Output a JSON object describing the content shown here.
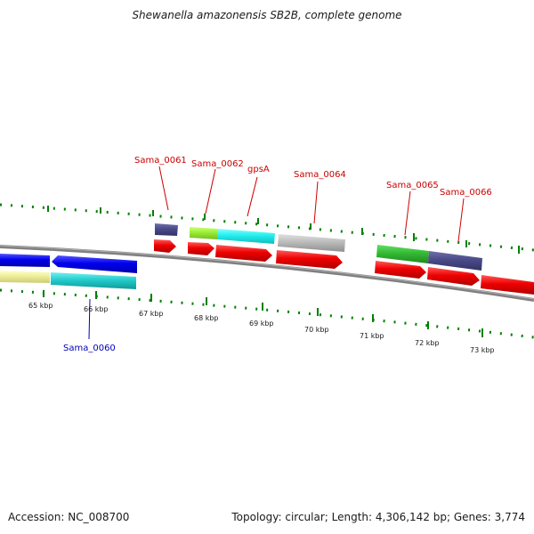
{
  "title": "Shewanella amazonensis SB2B, complete genome",
  "footer": {
    "accession": "Accession: NC_008700",
    "topology": "Topology: circular; Length: 4,306,142 bp; Genes: 3,774"
  },
  "colors": {
    "background": "#ffffff",
    "backbone": "#808080",
    "tick": "#008000",
    "label_red": "#cc0000",
    "label_blue": "#0000bb"
  },
  "scale": {
    "unit": "kbp",
    "labels": [
      "65 kbp",
      "66 kbp",
      "67 kbp",
      "68 kbp",
      "69 kbp",
      "70 kbp",
      "71 kbp",
      "72 kbp",
      "73 kbp"
    ]
  },
  "gene_labels": [
    {
      "text": "Sama_0061",
      "strand": "forward"
    },
    {
      "text": "Sama_0062",
      "strand": "forward"
    },
    {
      "text": "gpsA",
      "strand": "forward"
    },
    {
      "text": "Sama_0064",
      "strand": "forward"
    },
    {
      "text": "Sama_0065",
      "strand": "forward"
    },
    {
      "text": "Sama_0066",
      "strand": "forward"
    },
    {
      "text": "Sama_0060",
      "strand": "reverse"
    }
  ],
  "feature_colors": {
    "cds": "#ee0000",
    "dark_purple": "#4a4a8a",
    "lime": "#99ee33",
    "cyan": "#22eeee",
    "gray": "#bbbbbb",
    "green": "#33bb33",
    "blue": "#0000ee",
    "teal": "#22cccc",
    "khaki": "#eeee99"
  }
}
